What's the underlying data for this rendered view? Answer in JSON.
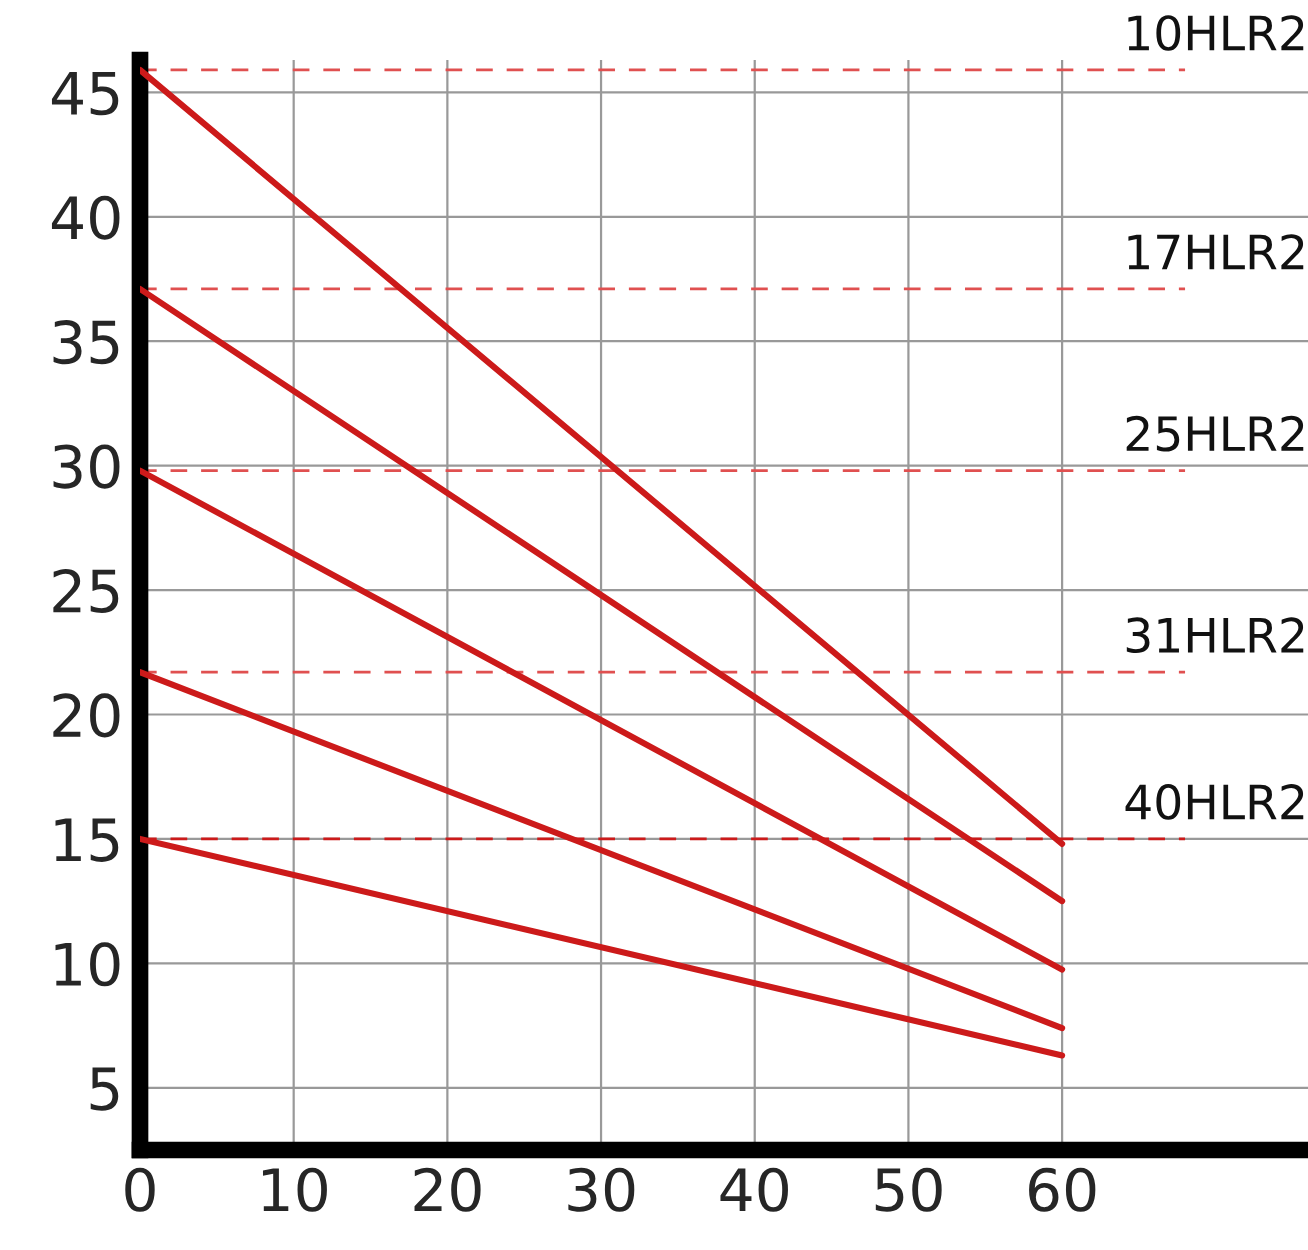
{
  "chart_data": {
    "type": "line",
    "x": [
      0,
      60
    ],
    "series": [
      {
        "color": "#cc1a1a",
        "values": [
          45.9,
          14.8
        ]
      },
      {
        "color": "#cc1a1a",
        "values": [
          37.1,
          12.5
        ]
      },
      {
        "color": "#cc1a1a",
        "values": [
          29.8,
          9.75
        ]
      },
      {
        "color": "#cc1a1a",
        "values": [
          21.7,
          7.4
        ]
      },
      {
        "color": "#cc1a1a",
        "values": [
          15.0,
          6.3
        ]
      }
    ],
    "ref_lines": [
      {
        "axis": "y",
        "value": 45.9,
        "label": "10HLR2",
        "color": "#e05050",
        "line_style": "dashed"
      },
      {
        "axis": "y",
        "value": 37.1,
        "label": "17HLR2",
        "color": "#e05050",
        "line_style": "dashed"
      },
      {
        "axis": "y",
        "value": 29.8,
        "label": "25HLR2",
        "color": "#e05050",
        "line_style": "dashed"
      },
      {
        "axis": "y",
        "value": 21.7,
        "label": "31HLR2",
        "color": "#e05050",
        "line_style": "dashed"
      },
      {
        "axis": "y",
        "value": 15.0,
        "label": "40HLR2",
        "color": "#cc1a1a",
        "line_style": "dashed"
      }
    ],
    "xlim": [
      0,
      76
    ],
    "ylim": [
      2.5,
      46.3
    ],
    "xticks": [
      0,
      10,
      20,
      30,
      40,
      50,
      60
    ],
    "yticks": [
      5,
      10,
      15,
      20,
      25,
      30,
      35,
      40,
      45
    ],
    "grid": true,
    "marker": "none",
    "line_style": "solid",
    "legend": false
  }
}
